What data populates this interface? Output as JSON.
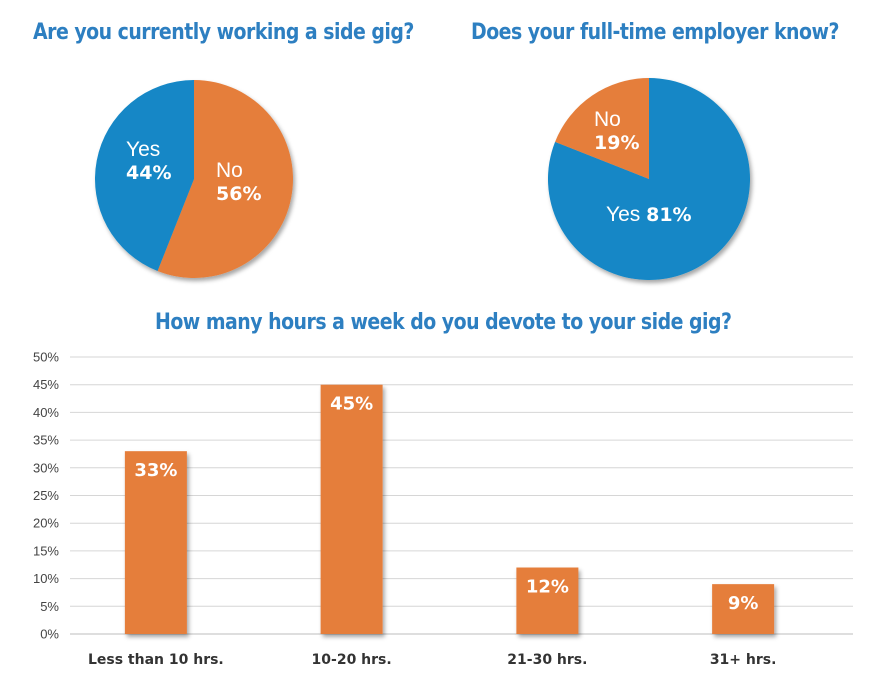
{
  "chart_data": [
    {
      "type": "pie",
      "title": "Are you currently working a side gig?",
      "slices": [
        {
          "label": "No",
          "value": 56,
          "value_text": "56%",
          "color": "#e57e3b"
        },
        {
          "label": "Yes",
          "value": 44,
          "value_text": "44%",
          "color": "#1287c6"
        }
      ]
    },
    {
      "type": "pie",
      "title": "Does your full-time employer know?",
      "slices": [
        {
          "label": "Yes",
          "value": 81,
          "value_text": "81%",
          "color": "#1287c6"
        },
        {
          "label": "No",
          "value": 19,
          "value_text": "19%",
          "color": "#e57e3b"
        }
      ]
    },
    {
      "type": "bar",
      "title": "How many hours a week do you devote to your side gig?",
      "categories": [
        "Less than 10 hrs.",
        "10-20 hrs.",
        "21-30 hrs.",
        "31+ hrs."
      ],
      "values": [
        33,
        45,
        12,
        9
      ],
      "value_labels": [
        "33%",
        "45%",
        "12%",
        "9%"
      ],
      "ylim": [
        0,
        50
      ],
      "yticks": [
        "0%",
        "5%",
        "10%",
        "15%",
        "20%",
        "25%",
        "30%",
        "35%",
        "40%",
        "45%",
        "50%"
      ],
      "grid": true,
      "bar_color": "#e57e3b"
    }
  ]
}
